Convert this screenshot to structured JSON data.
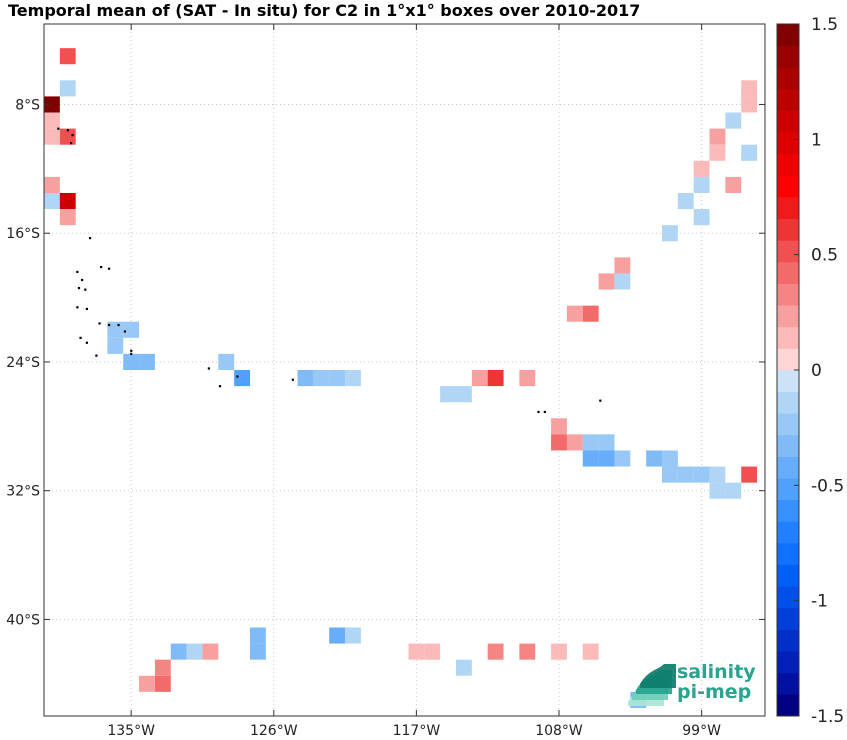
{
  "chart_data": {
    "type": "heatmap",
    "title": "Temporal mean of (SAT - In situ) for C2 in 1°x1° boxes over 2010-2017",
    "xlim": [
      -140.5,
      -95
    ],
    "ylim": [
      -46,
      -3
    ],
    "x_ticks": [
      {
        "value": -135,
        "label": "135°W"
      },
      {
        "value": -126,
        "label": "126°W"
      },
      {
        "value": -117,
        "label": "117°W"
      },
      {
        "value": -108,
        "label": "108°W"
      },
      {
        "value": -99,
        "label": "99°W"
      }
    ],
    "y_ticks": [
      {
        "value": -8,
        "label": "8°S"
      },
      {
        "value": -16,
        "label": "16°S"
      },
      {
        "value": -24,
        "label": "24°S"
      },
      {
        "value": -32,
        "label": "32°S"
      },
      {
        "value": -40,
        "label": "40°S"
      }
    ],
    "grid": true,
    "colorbar": {
      "range": [
        -1.5,
        1.5
      ],
      "levels": 32,
      "ticks": [
        {
          "value": 1.5,
          "label": "1.5"
        },
        {
          "value": 1,
          "label": "1"
        },
        {
          "value": 0.5,
          "label": "0.5"
        },
        {
          "value": 0,
          "label": "0"
        },
        {
          "value": -0.5,
          "label": "-0.5"
        },
        {
          "value": -1,
          "label": "-1"
        },
        {
          "value": -1.5,
          "label": "-1.5"
        }
      ],
      "colors": [
        "#000080",
        "#0010a0",
        "#0020b8",
        "#0030c8",
        "#0040d8",
        "#0050e8",
        "#0060f5",
        "#1070ff",
        "#2080ff",
        "#3890ff",
        "#50a0ff",
        "#68adfa",
        "#80bbf7",
        "#98c8f5",
        "#b0d5f5",
        "#cce3f7",
        "#fdd5d5",
        "#fbbaba",
        "#f8a0a0",
        "#f58585",
        "#f26a6a",
        "#f05050",
        "#ee3535",
        "#ef1a1a",
        "#ff0000",
        "#ee0000",
        "#dd0000",
        "#cc0000",
        "#bb0000",
        "#aa0000",
        "#990000",
        "#800000"
      ]
    },
    "cells": [
      {
        "lon": -139,
        "lat": -5,
        "value": 0.55
      },
      {
        "lon": -139,
        "lat": -7,
        "value": -0.12
      },
      {
        "lon": -140,
        "lat": -8,
        "value": 1.45
      },
      {
        "lon": -140,
        "lat": -9,
        "value": 0.15
      },
      {
        "lon": -140,
        "lat": -10,
        "value": 0.15
      },
      {
        "lon": -139,
        "lat": -10,
        "value": 0.55
      },
      {
        "lon": -140,
        "lat": -13,
        "value": 0.25
      },
      {
        "lon": -140,
        "lat": -14,
        "value": -0.12
      },
      {
        "lon": -139,
        "lat": -14,
        "value": 1.05
      },
      {
        "lon": -139,
        "lat": -15,
        "value": 0.2
      },
      {
        "lon": -136,
        "lat": -22,
        "value": -0.25
      },
      {
        "lon": -135,
        "lat": -22,
        "value": -0.2
      },
      {
        "lon": -136,
        "lat": -23,
        "value": -0.2
      },
      {
        "lon": -135,
        "lat": -24,
        "value": -0.3
      },
      {
        "lon": -134,
        "lat": -24,
        "value": -0.3
      },
      {
        "lon": -129,
        "lat": -24,
        "value": -0.25
      },
      {
        "lon": -128,
        "lat": -25,
        "value": -0.5
      },
      {
        "lon": -124,
        "lat": -25,
        "value": -0.35
      },
      {
        "lon": -123,
        "lat": -25,
        "value": -0.25
      },
      {
        "lon": -122,
        "lat": -25,
        "value": -0.25
      },
      {
        "lon": -121,
        "lat": -25,
        "value": -0.12
      },
      {
        "lon": -115,
        "lat": -26,
        "value": -0.15
      },
      {
        "lon": -114,
        "lat": -26,
        "value": -0.15
      },
      {
        "lon": -113,
        "lat": -25,
        "value": 0.25
      },
      {
        "lon": -112,
        "lat": -25,
        "value": 0.65
      },
      {
        "lon": -110,
        "lat": -25,
        "value": 0.25
      },
      {
        "lon": -108,
        "lat": -28,
        "value": 0.25
      },
      {
        "lon": -108,
        "lat": -29,
        "value": 0.4
      },
      {
        "lon": -107,
        "lat": -29,
        "value": 0.2
      },
      {
        "lon": -106,
        "lat": -29,
        "value": -0.2
      },
      {
        "lon": -105,
        "lat": -29,
        "value": -0.2
      },
      {
        "lon": -106,
        "lat": -30,
        "value": -0.4
      },
      {
        "lon": -105,
        "lat": -30,
        "value": -0.4
      },
      {
        "lon": -104,
        "lat": -30,
        "value": -0.2
      },
      {
        "lon": -102,
        "lat": -30,
        "value": -0.3
      },
      {
        "lon": -101,
        "lat": -30,
        "value": -0.2
      },
      {
        "lon": -101,
        "lat": -31,
        "value": -0.25
      },
      {
        "lon": -100,
        "lat": -31,
        "value": -0.25
      },
      {
        "lon": -99,
        "lat": -31,
        "value": -0.25
      },
      {
        "lon": -98,
        "lat": -31,
        "value": -0.15
      },
      {
        "lon": -98,
        "lat": -32,
        "value": -0.12
      },
      {
        "lon": -97,
        "lat": -32,
        "value": -0.12
      },
      {
        "lon": -96,
        "lat": -31,
        "value": 0.5
      },
      {
        "lon": -96,
        "lat": -7,
        "value": 0.15
      },
      {
        "lon": -96,
        "lat": -8,
        "value": 0.15
      },
      {
        "lon": -97,
        "lat": -9,
        "value": -0.12
      },
      {
        "lon": -98,
        "lat": -10,
        "value": 0.25
      },
      {
        "lon": -98,
        "lat": -11,
        "value": 0.15
      },
      {
        "lon": -96,
        "lat": -11,
        "value": -0.15
      },
      {
        "lon": -99,
        "lat": -12,
        "value": 0.15
      },
      {
        "lon": -99,
        "lat": -13,
        "value": -0.1
      },
      {
        "lon": -97,
        "lat": -13,
        "value": 0.2
      },
      {
        "lon": -100,
        "lat": -14,
        "value": -0.15
      },
      {
        "lon": -99,
        "lat": -15,
        "value": -0.12
      },
      {
        "lon": -101,
        "lat": -16,
        "value": -0.15
      },
      {
        "lon": -104,
        "lat": -18,
        "value": 0.25
      },
      {
        "lon": -105,
        "lat": -19,
        "value": 0.2
      },
      {
        "lon": -104,
        "lat": -19,
        "value": -0.12
      },
      {
        "lon": -107,
        "lat": -21,
        "value": 0.25
      },
      {
        "lon": -106,
        "lat": -21,
        "value": 0.4
      },
      {
        "lon": -132,
        "lat": -42,
        "value": -0.35
      },
      {
        "lon": -131,
        "lat": -42,
        "value": -0.15
      },
      {
        "lon": -130,
        "lat": -42,
        "value": 0.2
      },
      {
        "lon": -127,
        "lat": -41,
        "value": -0.35
      },
      {
        "lon": -127,
        "lat": -42,
        "value": -0.35
      },
      {
        "lon": -133,
        "lat": -43,
        "value": 0.3
      },
      {
        "lon": -133,
        "lat": -44,
        "value": 0.4
      },
      {
        "lon": -134,
        "lat": -44,
        "value": 0.25
      },
      {
        "lon": -122,
        "lat": -41,
        "value": -0.4
      },
      {
        "lon": -121,
        "lat": -41,
        "value": -0.12
      },
      {
        "lon": -117,
        "lat": -42,
        "value": 0.15
      },
      {
        "lon": -116,
        "lat": -42,
        "value": 0.15
      },
      {
        "lon": -114,
        "lat": -43,
        "value": -0.12
      },
      {
        "lon": -112,
        "lat": -42,
        "value": 0.3
      },
      {
        "lon": -110,
        "lat": -42,
        "value": 0.3
      },
      {
        "lon": -108,
        "lat": -42,
        "value": 0.15
      },
      {
        "lon": -106,
        "lat": -42,
        "value": 0.15
      },
      {
        "lon": -103,
        "lat": -45,
        "value": -0.3
      }
    ],
    "islands": [
      {
        "lon": -139.6,
        "lat": -9.5
      },
      {
        "lon": -139.0,
        "lat": -9.6
      },
      {
        "lon": -138.7,
        "lat": -9.9
      },
      {
        "lon": -138.8,
        "lat": -10.4
      },
      {
        "lon": -137.6,
        "lat": -16.3
      },
      {
        "lon": -136.9,
        "lat": -18.1
      },
      {
        "lon": -136.4,
        "lat": -18.2
      },
      {
        "lon": -138.4,
        "lat": -18.4
      },
      {
        "lon": -138.1,
        "lat": -18.9
      },
      {
        "lon": -138.3,
        "lat": -19.4
      },
      {
        "lon": -137.9,
        "lat": -19.5
      },
      {
        "lon": -138.4,
        "lat": -20.6
      },
      {
        "lon": -137.8,
        "lat": -20.7
      },
      {
        "lon": -137.0,
        "lat": -21.6
      },
      {
        "lon": -136.4,
        "lat": -21.7
      },
      {
        "lon": -135.8,
        "lat": -21.7
      },
      {
        "lon": -135.4,
        "lat": -22.1
      },
      {
        "lon": -138.2,
        "lat": -22.5
      },
      {
        "lon": -137.8,
        "lat": -22.8
      },
      {
        "lon": -137.2,
        "lat": -23.6
      },
      {
        "lon": -135.0,
        "lat": -23.3
      },
      {
        "lon": -135.0,
        "lat": -23.5
      },
      {
        "lon": -130.1,
        "lat": -24.4
      },
      {
        "lon": -129.4,
        "lat": -25.5
      },
      {
        "lon": -128.3,
        "lat": -24.9
      },
      {
        "lon": -124.8,
        "lat": -25.1
      },
      {
        "lon": -109.3,
        "lat": -27.1
      },
      {
        "lon": -108.9,
        "lat": -27.1
      },
      {
        "lon": -105.4,
        "lat": -26.4
      }
    ]
  },
  "logo": {
    "line1": "salinity",
    "line2": "pi-mep",
    "colors": [
      "#0d7d6c",
      "#26a38f",
      "#6fcdb6",
      "#a8e6d6"
    ]
  }
}
